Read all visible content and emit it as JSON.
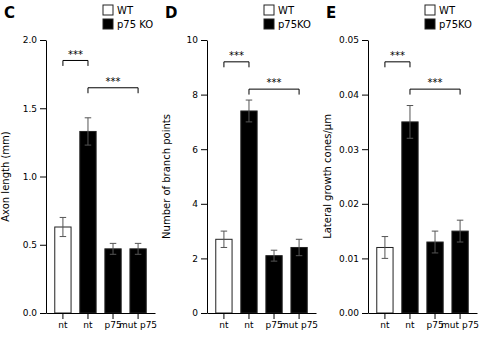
{
  "chart_data": [
    {
      "type": "bar",
      "title": "C",
      "y_label": "Axon length (mm)",
      "categories": [
        "nt",
        "nt",
        "p75",
        "mut p75"
      ],
      "series": [
        {
          "name": "WT",
          "color": "white",
          "values": [
            0.63,
            null,
            null,
            null
          ],
          "errors": [
            0.07,
            null,
            null,
            null
          ]
        },
        {
          "name": "p75 KO",
          "color": "black",
          "values": [
            null,
            1.33,
            0.47,
            0.47
          ],
          "errors": [
            null,
            0.1,
            0.04,
            0.04
          ]
        }
      ],
      "ylim": [
        0,
        2.0
      ],
      "yticks": [
        {
          "value": 0,
          "label": "0.0"
        },
        0.5,
        {
          "value": 1.0,
          "label": "1.0"
        },
        1.5,
        {
          "value": 2.0,
          "label": "2.0"
        }
      ],
      "annotations": [
        {
          "text": "***",
          "x1": 0,
          "x2": 1,
          "y": 1.85
        },
        {
          "text": "***",
          "x1": 1,
          "x2": 3,
          "y": 1.65
        }
      ],
      "legend": "upper right",
      "grid": false
    },
    {
      "type": "bar",
      "title": "D",
      "y_label": "Number of branch points",
      "categories": [
        "nt",
        "nt",
        "p75",
        "mut p75"
      ],
      "series": [
        {
          "name": "WT",
          "color": "white",
          "values": [
            2.7,
            null,
            null,
            null
          ],
          "errors": [
            0.3,
            null,
            null,
            null
          ]
        },
        {
          "name": "p75KO",
          "color": "black",
          "values": [
            null,
            7.4,
            2.1,
            2.4
          ],
          "errors": [
            null,
            0.4,
            0.2,
            0.3
          ]
        }
      ],
      "ylim": [
        0,
        10
      ],
      "yticks": [
        0,
        2,
        4,
        6,
        8,
        10
      ],
      "annotations": [
        {
          "text": "***",
          "x1": 0,
          "x2": 1,
          "y": 9.2
        },
        {
          "text": "***",
          "x1": 1,
          "x2": 3,
          "y": 8.2
        }
      ],
      "legend": "upper right",
      "grid": false
    },
    {
      "type": "bar",
      "title": "E",
      "y_label": "Lateral growth cones/μm",
      "categories": [
        "nt",
        "nt",
        "p75",
        "mut p75"
      ],
      "series": [
        {
          "name": "WT",
          "color": "white",
          "values": [
            0.012,
            null,
            null,
            null
          ],
          "errors": [
            0.002,
            null,
            null,
            null
          ]
        },
        {
          "name": "p75KO",
          "color": "black",
          "values": [
            null,
            0.035,
            0.013,
            0.015
          ],
          "errors": [
            null,
            0.003,
            0.002,
            0.002
          ]
        }
      ],
      "ylim": [
        0,
        0.05
      ],
      "yticks": [
        {
          "value": 0.0,
          "label": "0.00"
        },
        0.01,
        0.02,
        0.03,
        0.04,
        0.05
      ],
      "annotations": [
        {
          "text": "***",
          "x1": 0,
          "x2": 1,
          "y": 0.046
        },
        {
          "text": "***",
          "x1": 1,
          "x2": 3,
          "y": 0.041
        }
      ],
      "legend": "upper right",
      "grid": false
    }
  ]
}
